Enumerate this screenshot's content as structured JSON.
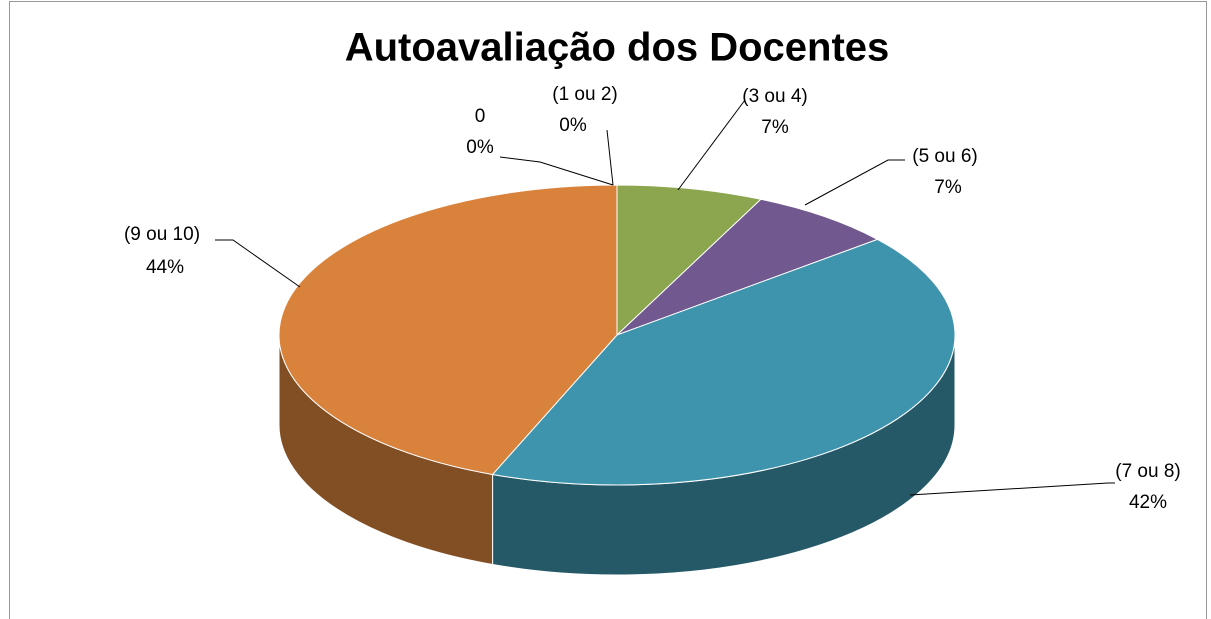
{
  "chart_data": {
    "type": "pie",
    "title": "Autoavaliação dos Docentes",
    "categories": [
      "0",
      "(1 ou 2)",
      "(3 ou 4)",
      "(5 ou 6)",
      "(7 ou 8)",
      "(9 ou 10)"
    ],
    "values": [
      0,
      0,
      7,
      7,
      42,
      44
    ],
    "value_labels": [
      "0%",
      "0%",
      "7%",
      "7%",
      "42%",
      "44%"
    ],
    "colors": [
      "#4f81bd",
      "#c0504d",
      "#8ba64f",
      "#71588f",
      "#3f94ad",
      "#d9823b"
    ]
  }
}
